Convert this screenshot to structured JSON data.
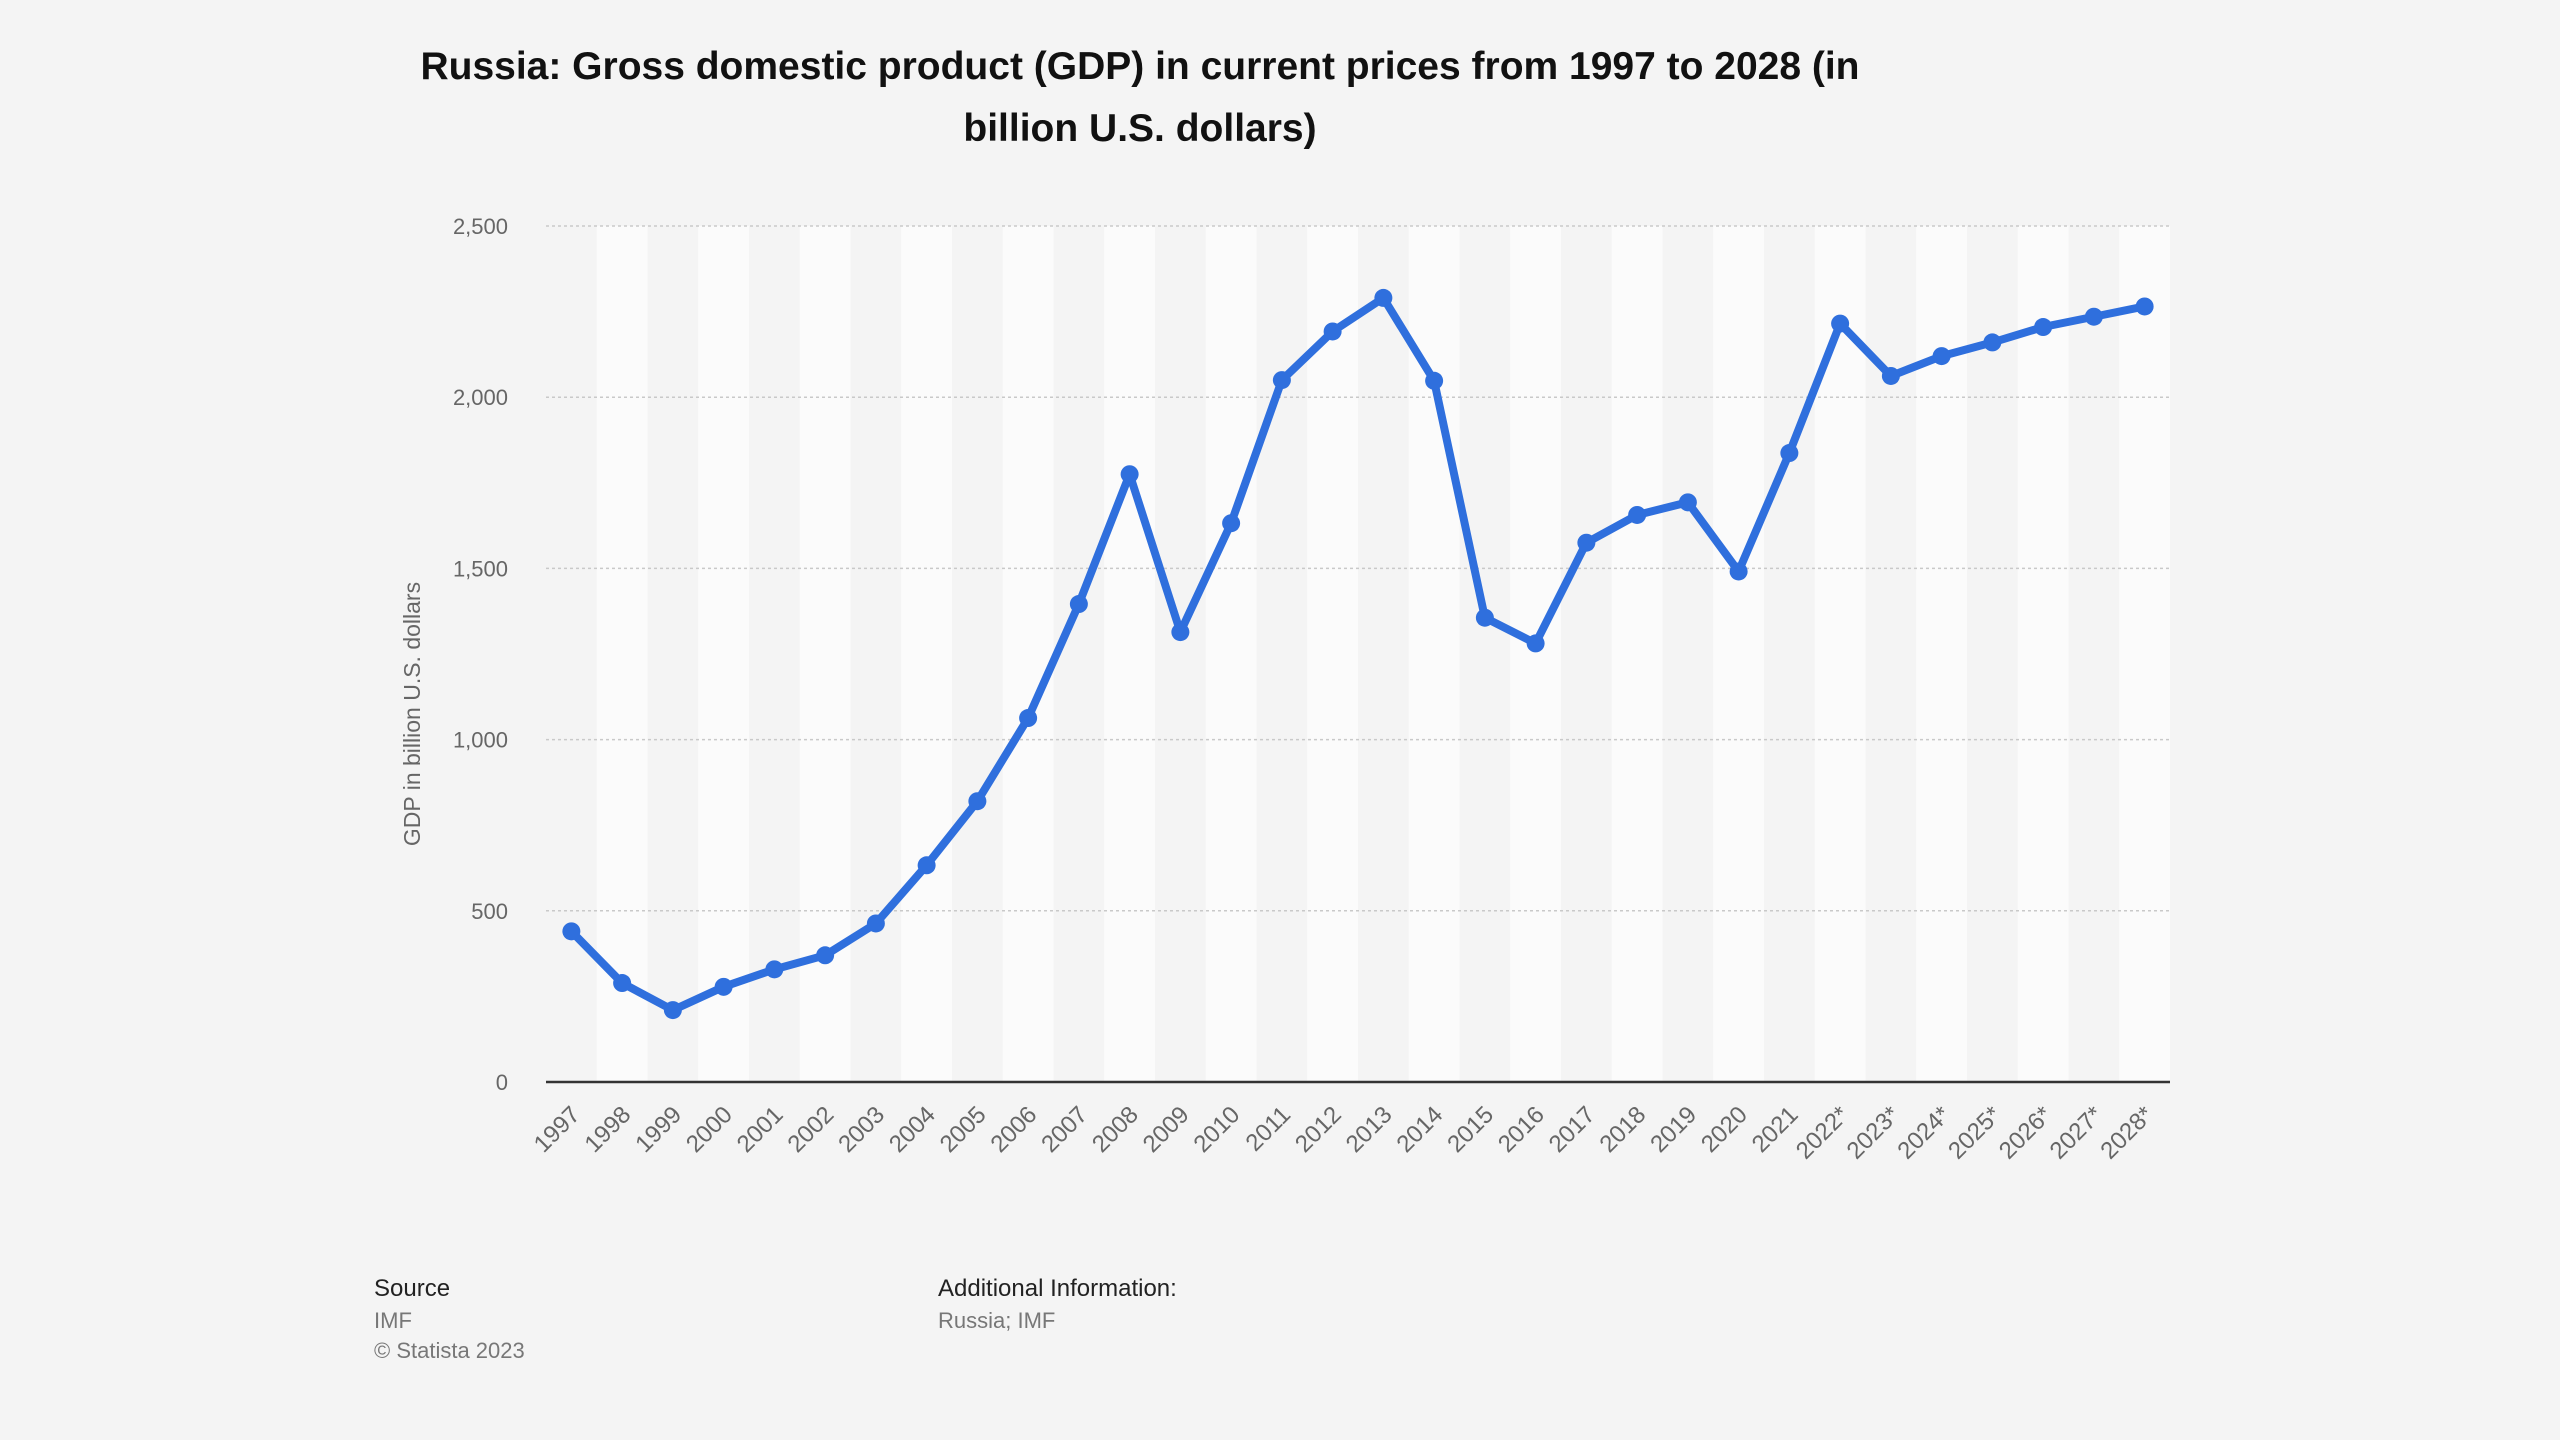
{
  "chart_data": {
    "type": "line",
    "title": "Russia: Gross domestic product (GDP) in current prices from 1997 to 2028 (in billion U.S. dollars)",
    "xlabel": "",
    "ylabel": "GDP in billion U.S. dollars",
    "categories": [
      "1997",
      "1998",
      "1999",
      "2000",
      "2001",
      "2002",
      "2003",
      "2004",
      "2005",
      "2006",
      "2007",
      "2008",
      "2009",
      "2010",
      "2011",
      "2012",
      "2013",
      "2014",
      "2015",
      "2016",
      "2017",
      "2018",
      "2019",
      "2020",
      "2021",
      "2022*",
      "2023*",
      "2024*",
      "2025*",
      "2026*",
      "2027*",
      "2028*"
    ],
    "values": [
      440,
      289,
      210,
      278,
      329,
      370,
      463,
      633,
      820,
      1063,
      1396,
      1775,
      1314,
      1632,
      2050,
      2192,
      2290,
      2048,
      1356,
      1281,
      1575,
      1656,
      1693,
      1491,
      1837,
      2215,
      2062,
      2120,
      2160,
      2205,
      2235,
      2265
    ],
    "yticks": [
      "0",
      "500",
      "1,000",
      "1,500",
      "2,000",
      "2,500"
    ],
    "ylim": [
      0,
      2500
    ],
    "grid": true,
    "legend": "none",
    "line_color": "#2f6fdd"
  },
  "footer": {
    "source_heading": "Source",
    "source_lines": [
      "IMF",
      "© Statista 2023"
    ],
    "info_heading": "Additional Information:",
    "info_lines": [
      "Russia; IMF"
    ]
  }
}
